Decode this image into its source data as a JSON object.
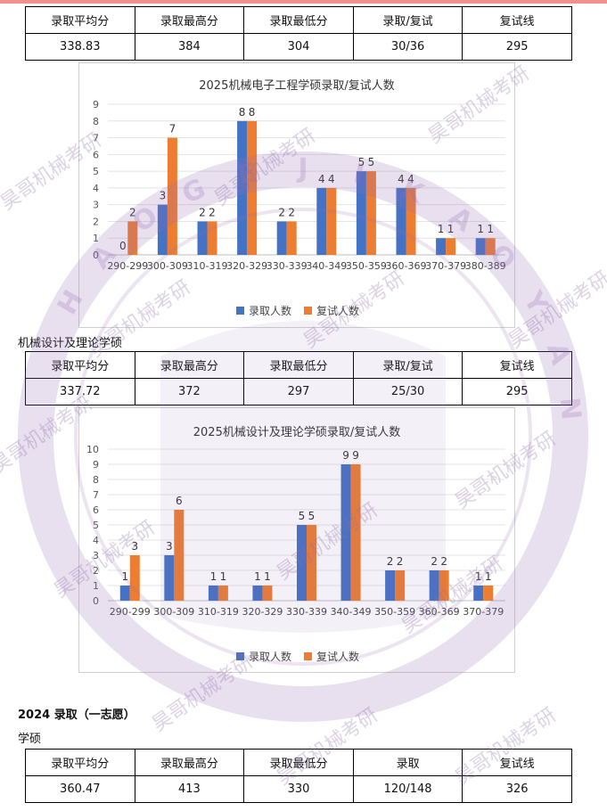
{
  "section1": {
    "table": {
      "headers": [
        "录取平均分",
        "录取最高分",
        "录取最低分",
        "录取/复试",
        "复试线"
      ],
      "values": [
        "338.83",
        "384",
        "304",
        "30/36",
        "295"
      ]
    }
  },
  "chart1": {
    "chart_data": {
      "type": "bar",
      "title": "2025机械电子工程学硕录取/复试人数",
      "categories": [
        "290-299",
        "300-309",
        "310-319",
        "320-329",
        "330-339",
        "340-349",
        "350-359",
        "360-369",
        "370-379",
        "380-389"
      ],
      "series": [
        {
          "name": "录取人数",
          "values": [
            0,
            3,
            2,
            8,
            2,
            4,
            5,
            4,
            1,
            1
          ]
        },
        {
          "name": "复试人数",
          "values": [
            2,
            7,
            2,
            8,
            2,
            4,
            5,
            4,
            1,
            1
          ]
        }
      ],
      "ylim": [
        0,
        9
      ],
      "yticks": [
        "0",
        "1",
        "2",
        "3",
        "4",
        "5",
        "6",
        "7",
        "8",
        "9"
      ],
      "grid": true,
      "legend": "bottom",
      "colors": [
        "#4472c4",
        "#ed7d31"
      ]
    }
  },
  "section2": {
    "heading": "机械设计及理论学硕",
    "table": {
      "headers": [
        "录取平均分",
        "录取最高分",
        "录取最低分",
        "录取/复试",
        "复试线"
      ],
      "values": [
        "337.72",
        "372",
        "297",
        "25/30",
        "295"
      ]
    }
  },
  "chart2": {
    "chart_data": {
      "type": "bar",
      "title": "2025机械设计及理论学硕录取/复试人数",
      "categories": [
        "290-299",
        "300-309",
        "310-319",
        "320-329",
        "330-339",
        "340-349",
        "350-359",
        "360-369",
        "370-379"
      ],
      "series": [
        {
          "name": "录取人数",
          "values": [
            1,
            3,
            1,
            1,
            5,
            9,
            2,
            2,
            1
          ]
        },
        {
          "name": "复试人数",
          "values": [
            3,
            6,
            1,
            1,
            5,
            9,
            2,
            2,
            1
          ]
        }
      ],
      "ylim": [
        0,
        10
      ],
      "yticks": [
        "0",
        "1",
        "2",
        "3",
        "4",
        "5",
        "6",
        "7",
        "8",
        "9",
        "10"
      ],
      "grid": true,
      "legend": "bottom",
      "colors": [
        "#4472c4",
        "#ed7d31"
      ]
    }
  },
  "section3": {
    "heading": "2024 录取（一志愿）",
    "subheading": "学硕",
    "table": {
      "headers": [
        "录取平均分",
        "录取最高分",
        "录取最低分",
        "录取",
        "复试线"
      ],
      "values": [
        "360.47",
        "413",
        "330",
        "120/148",
        "326"
      ]
    }
  },
  "watermark": {
    "text": "昊哥机械考研",
    "seal_letters": [
      "H",
      "A",
      "O",
      "G",
      "E",
      "J",
      "I",
      "K",
      "A",
      "O",
      "Y",
      "A",
      "N"
    ]
  }
}
